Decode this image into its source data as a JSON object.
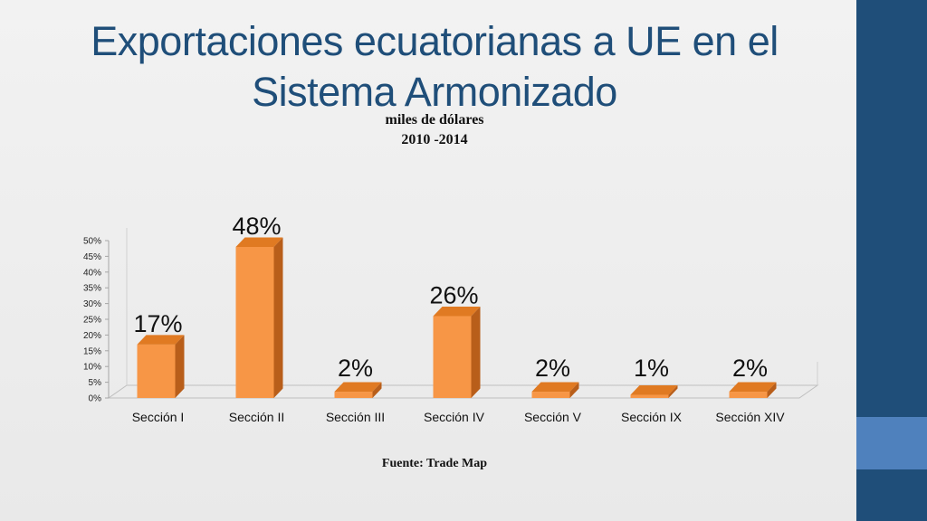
{
  "slide": {
    "title": "Exportaciones  ecuatorianas a UE en el Sistema Armonizado",
    "subtitle_line1": "miles de dólares",
    "subtitle_line2": "2010 -2014",
    "source": "Fuente: Trade Map",
    "colors": {
      "sidebar": "#1f4e79",
      "sidebar_accent": "#4f81bd",
      "bar": "#f79646",
      "title": "#1f4e79"
    }
  },
  "chart_data": {
    "type": "bar",
    "categories": [
      "Sección I",
      "Sección II",
      "Sección III",
      "Sección IV",
      "Sección V",
      "Sección IX",
      "Sección XIV"
    ],
    "values": [
      17,
      48,
      2,
      26,
      2,
      1,
      2
    ],
    "data_labels": [
      "17%",
      "48%",
      "2%",
      "26%",
      "2%",
      "1%",
      "2%"
    ],
    "ylim": [
      0,
      50
    ],
    "yticks": [
      "0%",
      "5%",
      "10%",
      "15%",
      "20%",
      "25%",
      "30%",
      "35%",
      "40%",
      "45%",
      "50%"
    ],
    "grid": false,
    "style": "3d-column"
  }
}
